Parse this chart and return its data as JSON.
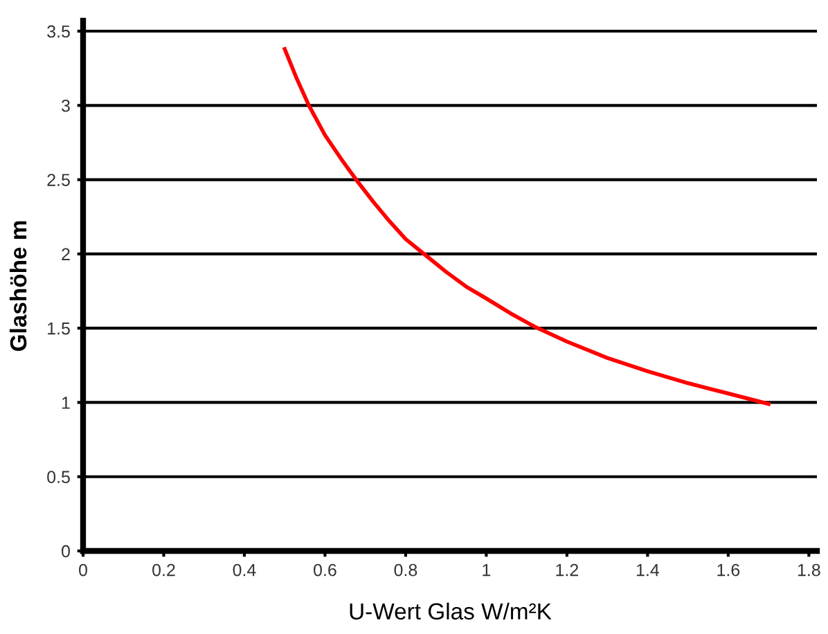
{
  "chart_data": {
    "type": "line",
    "xlabel": "U-Wert Glas W/m²K",
    "ylabel": "Glashöhe m",
    "series": [
      {
        "color": "#ff0000",
        "x": [
          0.5,
          0.53,
          0.56,
          0.6,
          0.64,
          0.68,
          0.72,
          0.76,
          0.8,
          0.85,
          0.9,
          0.95,
          1.0,
          1.06,
          1.12,
          1.2,
          1.3,
          1.4,
          1.5,
          1.6,
          1.7
        ],
        "values": [
          3.38,
          3.18,
          3.0,
          2.8,
          2.64,
          2.49,
          2.35,
          2.22,
          2.1,
          1.99,
          1.88,
          1.78,
          1.7,
          1.6,
          1.51,
          1.41,
          1.3,
          1.21,
          1.13,
          1.06,
          0.99
        ]
      }
    ],
    "xlim": [
      0,
      1.82
    ],
    "ylim": [
      0,
      3.57
    ],
    "xticks": [
      0,
      0.2,
      0.4,
      0.6,
      0.8,
      1,
      1.2,
      1.4,
      1.6,
      1.8
    ],
    "yticks": [
      0,
      0.5,
      1,
      1.5,
      2,
      2.5,
      3,
      3.5
    ],
    "grid": "y",
    "marker": "none",
    "line_style": "solid"
  }
}
